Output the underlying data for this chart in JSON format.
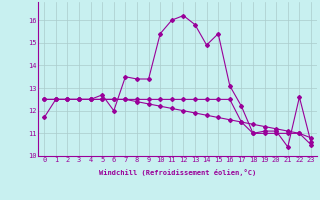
{
  "xlabel": "Windchill (Refroidissement éolien,°C)",
  "bg_color": "#c8f0f0",
  "line_color": "#990099",
  "grid_color": "#aacccc",
  "xlim": [
    -0.5,
    23.5
  ],
  "ylim": [
    10.0,
    16.8
  ],
  "yticks": [
    10,
    11,
    12,
    13,
    14,
    15,
    16
  ],
  "xticks": [
    0,
    1,
    2,
    3,
    4,
    5,
    6,
    7,
    8,
    9,
    10,
    11,
    12,
    13,
    14,
    15,
    16,
    17,
    18,
    19,
    20,
    21,
    22,
    23
  ],
  "line1_x": [
    0,
    1,
    2,
    3,
    4,
    5,
    6,
    7,
    8,
    9,
    10,
    11,
    12,
    13,
    14,
    15,
    16,
    17,
    18,
    19,
    20,
    21,
    22,
    23
  ],
  "line1_y": [
    11.7,
    12.5,
    12.5,
    12.5,
    12.5,
    12.7,
    12.0,
    13.5,
    13.4,
    13.4,
    15.4,
    16.0,
    16.2,
    15.8,
    14.9,
    15.4,
    13.1,
    12.2,
    11.0,
    11.1,
    11.1,
    10.4,
    12.6,
    10.6
  ],
  "line2_x": [
    0,
    1,
    2,
    3,
    4,
    5,
    6,
    7,
    8,
    9,
    10,
    11,
    12,
    13,
    14,
    15,
    16,
    17,
    18,
    19,
    20,
    21,
    22,
    23
  ],
  "line2_y": [
    12.5,
    12.5,
    12.5,
    12.5,
    12.5,
    12.5,
    12.5,
    12.5,
    12.5,
    12.5,
    12.5,
    12.5,
    12.5,
    12.5,
    12.5,
    12.5,
    12.5,
    11.5,
    11.0,
    11.0,
    11.0,
    11.0,
    11.0,
    10.5
  ],
  "line3_x": [
    0,
    1,
    2,
    3,
    4,
    5,
    6,
    7,
    8,
    9,
    10,
    11,
    12,
    13,
    14,
    15,
    16,
    17,
    18,
    19,
    20,
    21,
    22,
    23
  ],
  "line3_y": [
    12.5,
    12.5,
    12.5,
    12.5,
    12.5,
    12.5,
    12.5,
    12.5,
    12.4,
    12.3,
    12.2,
    12.1,
    12.0,
    11.9,
    11.8,
    11.7,
    11.6,
    11.5,
    11.4,
    11.3,
    11.2,
    11.1,
    11.0,
    10.8
  ],
  "xlabel_fontsize": 5.0,
  "tick_fontsize": 5.0,
  "marker_size": 2.0,
  "linewidth": 0.8
}
